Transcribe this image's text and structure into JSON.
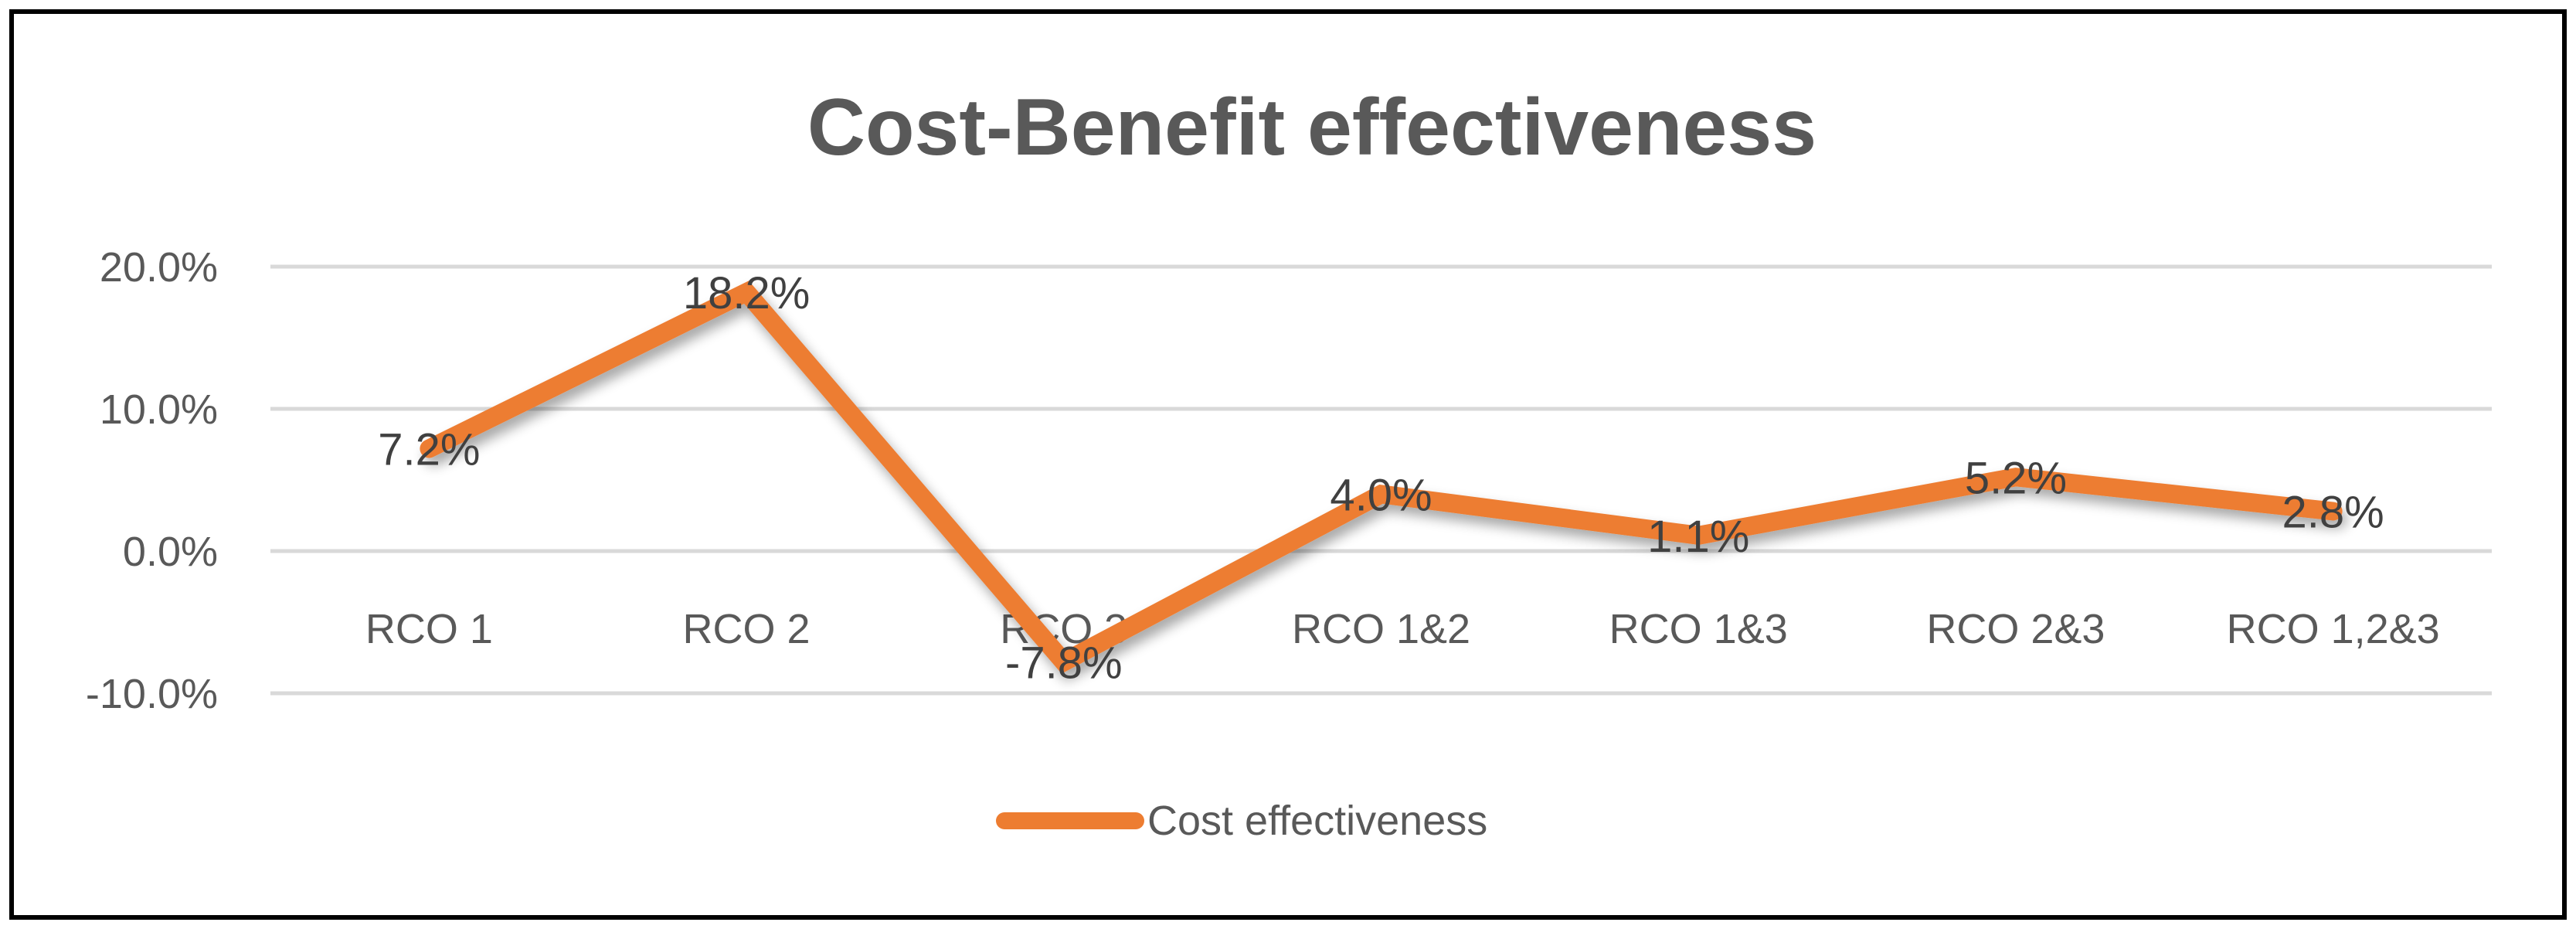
{
  "chart_data": {
    "type": "line",
    "title": "Cost-Benefit effectiveness",
    "categories": [
      "RCO 1",
      "RCO 2",
      "RCO 3",
      "RCO 1&2",
      "RCO 1&3",
      "RCO 2&3",
      "RCO 1,2&3"
    ],
    "series": [
      {
        "name": "Cost effectiveness",
        "values": [
          7.2,
          18.2,
          -7.8,
          4.0,
          1.1,
          5.2,
          2.8
        ],
        "labels": [
          "7.2%",
          "18.2%",
          "-7.8%",
          "4.0%",
          "1.1%",
          "5.2%",
          "2.8%"
        ],
        "color": "#ED7D31"
      }
    ],
    "ylim": [
      -10,
      20
    ],
    "yticks": [
      20,
      10,
      0,
      -10
    ],
    "ytick_labels": [
      "20.0%",
      "10.0%",
      "0.0%",
      "-10.0%"
    ],
    "xlabel": "",
    "ylabel": "",
    "grid": true,
    "legend_position": "bottom"
  }
}
